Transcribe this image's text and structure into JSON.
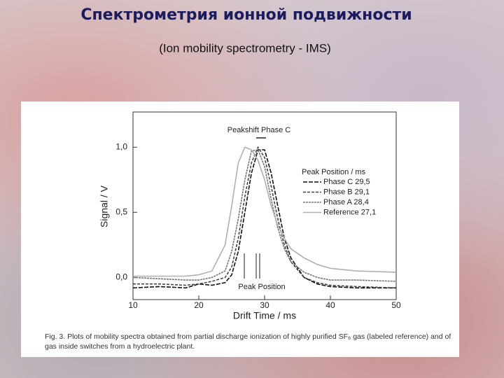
{
  "chart_data": {
    "type": "line",
    "title": "Спектрометрия ионной подвижности",
    "subtitle": "(Ion mobility spectrometry - IMS)",
    "x_label": "Drift Time / ms",
    "y_label": "Signal / V",
    "annotations": [
      "Peakshift Phase C",
      "Peak Position"
    ],
    "legend_title": "Peak Position / ms",
    "legend": "upper right",
    "caption": "Fig. 3. Plots of mobility spectra obtained from partial discharge ionization of highly purified SF₆ gas (labeled reference) and of gas inside switches from a hydroelectric plant.",
    "x": [
      10,
      14,
      18,
      20,
      22,
      24,
      25,
      26,
      27,
      28,
      29,
      30,
      31,
      32,
      33,
      34,
      36,
      38,
      40,
      44,
      50
    ],
    "series": [
      {
        "name": "Phase C 29,5",
        "color": "#111111",
        "values": [
          -0.08,
          -0.07,
          -0.08,
          -0.05,
          -0.06,
          -0.04,
          0.02,
          0.2,
          0.5,
          0.8,
          0.98,
          0.98,
          0.8,
          0.55,
          0.3,
          0.15,
          0.0,
          -0.05,
          -0.07,
          -0.08,
          -0.08
        ]
      },
      {
        "name": "Phase B 29,1",
        "color": "#444444",
        "values": [
          -0.05,
          -0.05,
          -0.06,
          -0.05,
          -0.03,
          0.0,
          0.08,
          0.3,
          0.62,
          0.88,
          1.0,
          0.92,
          0.7,
          0.45,
          0.25,
          0.12,
          0.0,
          -0.04,
          -0.06,
          -0.07,
          -0.08
        ]
      },
      {
        "name": "Phase A 28,4",
        "color": "#777777",
        "values": [
          0.0,
          -0.01,
          -0.02,
          -0.02,
          0.0,
          0.05,
          0.2,
          0.45,
          0.75,
          0.97,
          0.98,
          0.85,
          0.6,
          0.38,
          0.22,
          0.12,
          0.04,
          0.0,
          -0.02,
          -0.02,
          -0.03
        ]
      },
      {
        "name": "Reference 27,1",
        "color": "#b0b0b0",
        "values": [
          0.01,
          0.01,
          0.01,
          0.02,
          0.05,
          0.25,
          0.55,
          0.88,
          1.0,
          0.98,
          0.9,
          0.75,
          0.55,
          0.4,
          0.3,
          0.22,
          0.15,
          0.1,
          0.07,
          0.05,
          0.04
        ]
      }
    ],
    "xlim": [
      10,
      50
    ],
    "xticks": [
      10,
      20,
      30,
      40,
      50
    ],
    "ylim": [
      -0.17,
      1.27
    ],
    "yticks": [
      {
        "value": 0,
        "label": "0,0"
      },
      {
        "value": 0.5,
        "label": "0,5"
      },
      {
        "value": 1.0,
        "label": "1,0"
      }
    ],
    "grid": false
  }
}
